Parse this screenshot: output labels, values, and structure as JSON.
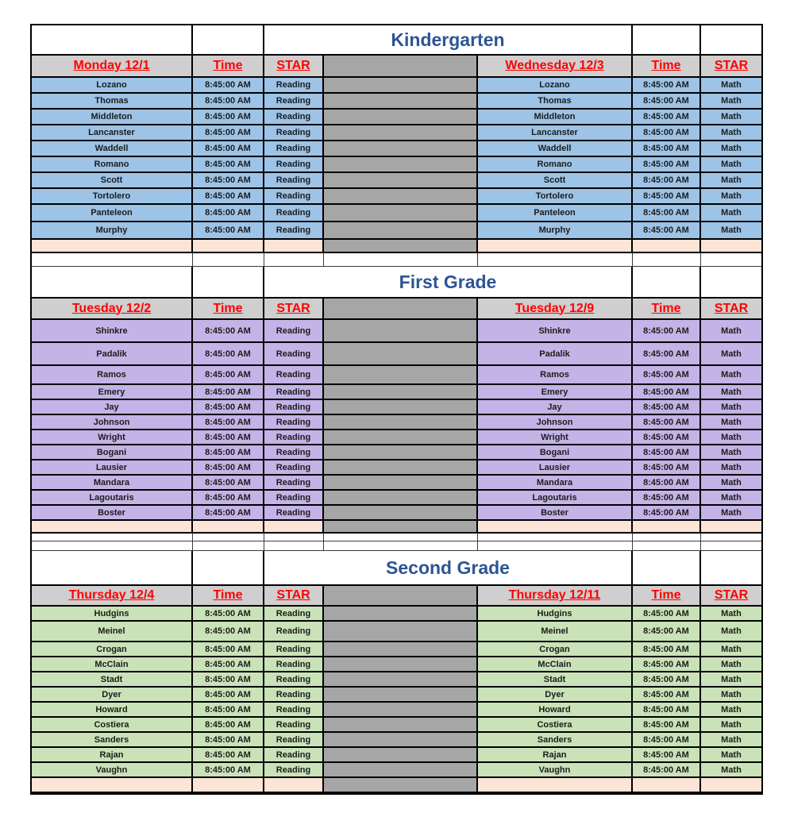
{
  "colors": {
    "title_text": "#2E5496",
    "header_text": "#FF0000",
    "header_bg": "#D0CECE",
    "center_column_bg": "#A6A6A6",
    "footer_bg": "#FCE4D6",
    "kindergarten_row_bg": "#9DC3E6",
    "first_grade_row_bg": "#C3B3E6",
    "second_grade_row_bg": "#C9E2B8",
    "border": "#000000"
  },
  "sections": [
    {
      "title": "Kindergarten",
      "row_color": "#9DC3E6",
      "left": {
        "day": "Monday 12/1",
        "time_header": "Time",
        "star_header": "STAR",
        "time": "8:45:00 AM",
        "subject": "Reading"
      },
      "right": {
        "day": "Wednesday 12/3",
        "time_header": "Time",
        "star_header": "STAR",
        "time": "8:45:00 AM",
        "subject": "Math"
      },
      "students": [
        "Lozano",
        "Thomas",
        "Middleton",
        "Lancanster",
        "Waddell",
        "Romano",
        "Scott",
        "Tortolero",
        "Panteleon",
        "Murphy"
      ]
    },
    {
      "title": "First Grade",
      "row_color": "#C3B3E6",
      "left": {
        "day": "Tuesday 12/2",
        "time_header": "Time",
        "star_header": "STAR",
        "time": "8:45:00 AM",
        "subject": "Reading"
      },
      "right": {
        "day": "Tuesday 12/9",
        "time_header": "Time",
        "star_header": "STAR",
        "time": "8:45:00 AM",
        "subject": "Math"
      },
      "students": [
        "Shinkre",
        "Padalik",
        "Ramos",
        "Emery",
        "Jay",
        "Johnson",
        "Wright",
        "Bogani",
        "Lausier",
        "Mandara",
        "Lagoutaris",
        "Boster"
      ]
    },
    {
      "title": "Second Grade",
      "row_color": "#C9E2B8",
      "left": {
        "day": "Thursday 12/4",
        "time_header": "Time",
        "star_header": "STAR",
        "time": "8:45:00 AM",
        "subject": "Reading"
      },
      "right": {
        "day": "Thursday 12/11",
        "time_header": "Time",
        "star_header": "STAR",
        "time": "8:45:00 AM",
        "subject": "Math"
      },
      "students": [
        "Hudgins",
        "Meinel",
        "Crogan",
        "McClain",
        "Stadt",
        "Dyer",
        "Howard",
        "Costiera",
        "Sanders",
        "Rajan",
        "Vaughn"
      ]
    }
  ]
}
